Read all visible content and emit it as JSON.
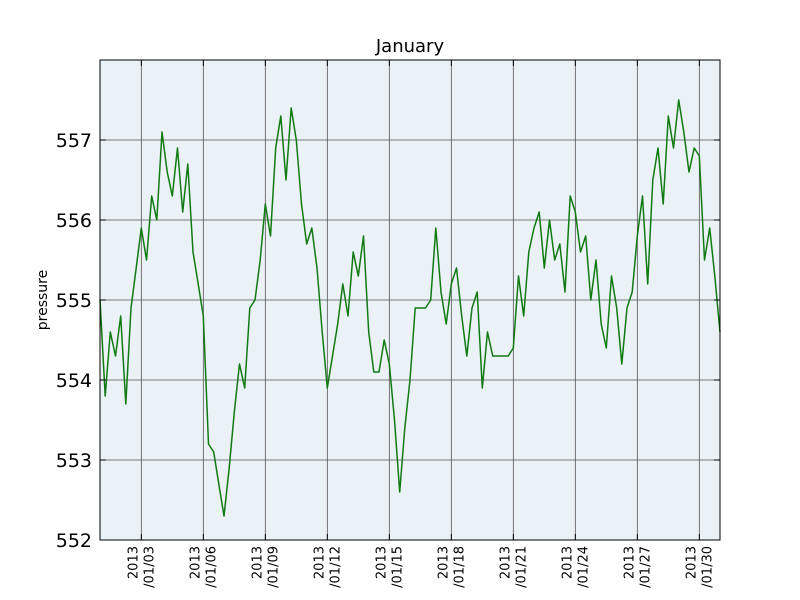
{
  "chart_data": {
    "type": "line",
    "title": "January",
    "xlabel": "",
    "ylabel": "pressure",
    "xlim": [
      "2013-01-01T00:00",
      "2013-01-31T00:00"
    ],
    "ylim": [
      552,
      558
    ],
    "yticks": [
      552,
      553,
      554,
      555,
      556,
      557
    ],
    "xticks": [
      {
        "date": "2013-01-03",
        "line1": "2013",
        "line2": "/01/03"
      },
      {
        "date": "2013-01-06",
        "line1": "2013",
        "line2": "/01/06"
      },
      {
        "date": "2013-01-09",
        "line1": "2013",
        "line2": "/01/09"
      },
      {
        "date": "2013-01-12",
        "line1": "2013",
        "line2": "/01/12"
      },
      {
        "date": "2013-01-15",
        "line1": "2013",
        "line2": "/01/15"
      },
      {
        "date": "2013-01-18",
        "line1": "2013",
        "line2": "/01/18"
      },
      {
        "date": "2013-01-21",
        "line1": "2013",
        "line2": "/01/21"
      },
      {
        "date": "2013-01-24",
        "line1": "2013",
        "line2": "/01/24"
      },
      {
        "date": "2013-01-27",
        "line1": "2013",
        "line2": "/01/27"
      },
      {
        "date": "2013-01-30",
        "line1": "2013",
        "line2": "/01/30"
      }
    ],
    "grid": true,
    "background_color": "#eaf2f8",
    "line_color": "#107a10",
    "series": [
      {
        "x": [
          "2013-01-01T00:00",
          "2013-01-01T06:00",
          "2013-01-01T12:00",
          "2013-01-01T18:00",
          "2013-01-02T00:00",
          "2013-01-02T06:00",
          "2013-01-02T12:00",
          "2013-01-02T18:00",
          "2013-01-03T00:00",
          "2013-01-03T06:00",
          "2013-01-03T12:00",
          "2013-01-03T18:00",
          "2013-01-04T00:00",
          "2013-01-04T06:00",
          "2013-01-04T12:00",
          "2013-01-04T18:00",
          "2013-01-05T00:00",
          "2013-01-05T06:00",
          "2013-01-05T12:00",
          "2013-01-05T18:00",
          "2013-01-06T00:00",
          "2013-01-06T06:00",
          "2013-01-06T12:00",
          "2013-01-06T18:00",
          "2013-01-07T00:00",
          "2013-01-07T06:00",
          "2013-01-07T12:00",
          "2013-01-07T18:00",
          "2013-01-08T00:00",
          "2013-01-08T06:00",
          "2013-01-08T12:00",
          "2013-01-08T18:00",
          "2013-01-09T00:00",
          "2013-01-09T06:00",
          "2013-01-09T12:00",
          "2013-01-09T18:00",
          "2013-01-10T00:00",
          "2013-01-10T06:00",
          "2013-01-10T12:00",
          "2013-01-10T18:00",
          "2013-01-11T00:00",
          "2013-01-11T06:00",
          "2013-01-11T12:00",
          "2013-01-11T18:00",
          "2013-01-12T00:00",
          "2013-01-12T06:00",
          "2013-01-12T12:00",
          "2013-01-12T18:00",
          "2013-01-13T00:00",
          "2013-01-13T06:00",
          "2013-01-13T12:00",
          "2013-01-13T18:00",
          "2013-01-14T00:00",
          "2013-01-14T06:00",
          "2013-01-14T12:00",
          "2013-01-14T18:00",
          "2013-01-15T00:00",
          "2013-01-15T06:00",
          "2013-01-15T12:00",
          "2013-01-15T18:00",
          "2013-01-16T00:00",
          "2013-01-16T06:00",
          "2013-01-16T12:00",
          "2013-01-16T18:00",
          "2013-01-17T00:00",
          "2013-01-17T06:00",
          "2013-01-17T12:00",
          "2013-01-17T18:00",
          "2013-01-18T00:00",
          "2013-01-18T06:00",
          "2013-01-18T12:00",
          "2013-01-18T18:00",
          "2013-01-19T00:00",
          "2013-01-19T06:00",
          "2013-01-19T12:00",
          "2013-01-19T18:00",
          "2013-01-20T00:00",
          "2013-01-20T06:00",
          "2013-01-20T12:00",
          "2013-01-20T18:00",
          "2013-01-21T00:00",
          "2013-01-21T06:00",
          "2013-01-21T12:00",
          "2013-01-21T18:00",
          "2013-01-22T00:00",
          "2013-01-22T06:00",
          "2013-01-22T12:00",
          "2013-01-22T18:00",
          "2013-01-23T00:00",
          "2013-01-23T06:00",
          "2013-01-23T12:00",
          "2013-01-23T18:00",
          "2013-01-24T00:00",
          "2013-01-24T06:00",
          "2013-01-24T12:00",
          "2013-01-24T18:00",
          "2013-01-25T00:00",
          "2013-01-25T06:00",
          "2013-01-25T12:00",
          "2013-01-25T18:00",
          "2013-01-26T00:00",
          "2013-01-26T06:00",
          "2013-01-26T12:00",
          "2013-01-26T18:00",
          "2013-01-27T00:00",
          "2013-01-27T06:00",
          "2013-01-27T12:00",
          "2013-01-27T18:00",
          "2013-01-28T00:00",
          "2013-01-28T06:00",
          "2013-01-28T12:00",
          "2013-01-28T18:00",
          "2013-01-29T00:00",
          "2013-01-29T06:00",
          "2013-01-29T12:00",
          "2013-01-29T18:00",
          "2013-01-30T00:00",
          "2013-01-30T06:00",
          "2013-01-30T12:00",
          "2013-01-30T18:00",
          "2013-01-31T00:00"
        ],
        "y": [
          555.0,
          553.8,
          554.6,
          554.3,
          554.8,
          553.7,
          554.9,
          555.4,
          555.9,
          555.5,
          556.3,
          556.0,
          557.1,
          556.6,
          556.3,
          556.9,
          556.1,
          556.7,
          555.6,
          555.2,
          554.8,
          553.2,
          553.1,
          552.7,
          552.3,
          552.9,
          553.6,
          554.2,
          553.9,
          554.9,
          555.0,
          555.5,
          556.2,
          555.8,
          556.9,
          557.3,
          556.5,
          557.4,
          557.0,
          556.2,
          555.7,
          555.9,
          555.4,
          554.6,
          553.9,
          554.3,
          554.7,
          555.2,
          554.8,
          555.6,
          555.3,
          555.8,
          554.6,
          554.1,
          554.1,
          554.5,
          554.2,
          553.5,
          552.6,
          553.4,
          554.0,
          554.9,
          554.9,
          554.9,
          555.0,
          555.9,
          555.1,
          554.7,
          555.2,
          555.4,
          554.8,
          554.3,
          554.9,
          555.1,
          553.9,
          554.6,
          554.3,
          554.3,
          554.3,
          554.3,
          554.4,
          555.3,
          554.8,
          555.6,
          555.9,
          556.1,
          555.4,
          556.0,
          555.5,
          555.7,
          555.1,
          556.3,
          556.1,
          555.6,
          555.8,
          555.0,
          555.5,
          554.7,
          554.4,
          555.3,
          554.9,
          554.2,
          554.9,
          555.1,
          555.8,
          556.3,
          555.2,
          556.5,
          556.9,
          556.2,
          557.3,
          556.9,
          557.5,
          557.1,
          556.6,
          556.9,
          556.8,
          555.5,
          555.9,
          555.3,
          554.6
        ]
      }
    ]
  }
}
